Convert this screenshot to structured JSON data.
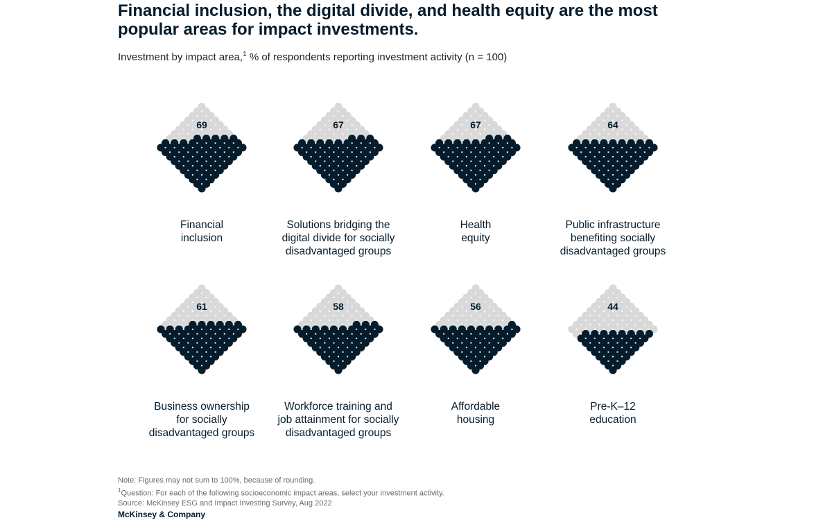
{
  "title": "Financial inclusion, the digital divide, and health equity are the most popular areas for impact investments.",
  "subtitle": {
    "prefix": "Investment by impact area,",
    "footnote_ref": "1",
    "suffix": " % of respondents reporting investment activity (n = 100)"
  },
  "chart_data": {
    "type": "dot-matrix",
    "unit": "% of respondents",
    "total_dots": 100,
    "colors": {
      "filled": "#051c2c",
      "empty": "#d9d9d9"
    },
    "categories": [
      {
        "label_lines": [
          "Financial",
          "inclusion"
        ],
        "value": 69
      },
      {
        "label_lines": [
          "Solutions bridging the",
          "digital divide for socially",
          "disadvantaged groups"
        ],
        "value": 67
      },
      {
        "label_lines": [
          "Health",
          "equity"
        ],
        "value": 67
      },
      {
        "label_lines": [
          "Public infrastructure",
          "benefiting socially",
          "disadvantaged groups"
        ],
        "value": 64
      },
      {
        "label_lines": [
          "Business ownership",
          "for socially",
          "disadvantaged groups"
        ],
        "value": 61
      },
      {
        "label_lines": [
          "Workforce training and",
          "job attainment for socially",
          "disadvantaged groups"
        ],
        "value": 58
      },
      {
        "label_lines": [
          "Affordable",
          "housing"
        ],
        "value": 56
      },
      {
        "label_lines": [
          "Pre-K–12",
          "education"
        ],
        "value": 44
      }
    ]
  },
  "footer": {
    "note": "Note: Figures may not sum to 100%, because of rounding.",
    "question_ref": "1",
    "question": "Question: For each of the following socioeconomic impact areas, select your investment activity.",
    "source": "Source: McKinsey ESG and Impact Investing Survey, Aug 2022"
  },
  "brand": "McKinsey & Company"
}
